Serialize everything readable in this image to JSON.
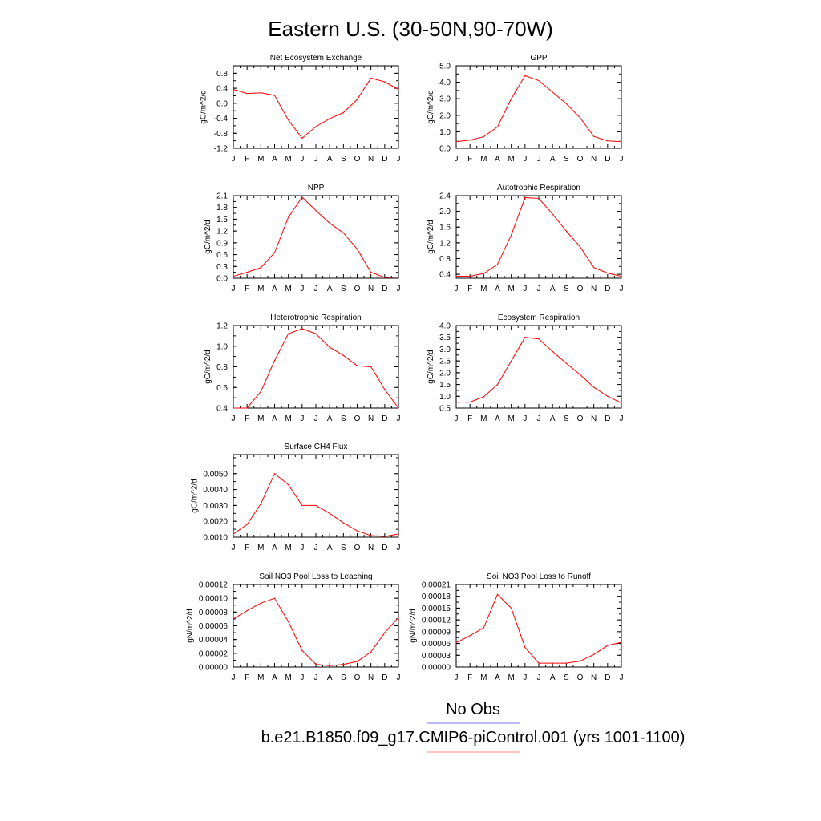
{
  "figure": {
    "title": "Eastern U.S. (30-50N,90-70W)",
    "legend": [
      {
        "label": "No Obs",
        "color": "#7777ee"
      },
      {
        "label": "b.e21.B1850.f09_g17.CMIP6-piControl.001 (yrs 1001-1100)",
        "color": "#ff8888"
      }
    ]
  },
  "chart_data": [
    {
      "type": "line",
      "title": "Net Ecosystem Exchange",
      "ylabel": "gC/m^2/d",
      "categories": [
        "J",
        "F",
        "M",
        "A",
        "M",
        "J",
        "J",
        "A",
        "S",
        "O",
        "N",
        "D",
        "J"
      ],
      "ylim": [
        -1.2,
        1.0
      ],
      "yticks": [
        -1.2,
        -0.8,
        -0.4,
        0.0,
        0.4,
        0.8
      ],
      "ytick_labels": [
        "-1.2",
        "-0.8",
        "-0.4",
        "0.0",
        "0.4",
        "0.8"
      ],
      "series": [
        {
          "color": "#ff0000",
          "values": [
            0.37,
            0.26,
            0.28,
            0.21,
            -0.45,
            -0.93,
            -0.62,
            -0.41,
            -0.25,
            0.1,
            0.67,
            0.57,
            0.37
          ]
        }
      ]
    },
    {
      "type": "line",
      "title": "GPP",
      "ylabel": "gC/m^2/d",
      "categories": [
        "J",
        "F",
        "M",
        "A",
        "M",
        "J",
        "J",
        "A",
        "S",
        "O",
        "N",
        "D",
        "J"
      ],
      "ylim": [
        0.0,
        5.0
      ],
      "yticks": [
        0.0,
        1.0,
        2.0,
        3.0,
        4.0,
        5.0
      ],
      "ytick_labels": [
        "0.0",
        "1.0",
        "2.0",
        "3.0",
        "4.0",
        "5.0"
      ],
      "series": [
        {
          "color": "#ff0000",
          "values": [
            0.4,
            0.5,
            0.7,
            1.3,
            3.0,
            4.4,
            4.1,
            3.4,
            2.7,
            1.85,
            0.72,
            0.45,
            0.4
          ]
        }
      ]
    },
    {
      "type": "line",
      "title": "NPP",
      "ylabel": "gC/m^2/d",
      "categories": [
        "J",
        "F",
        "M",
        "A",
        "M",
        "J",
        "J",
        "A",
        "S",
        "O",
        "N",
        "D",
        "J"
      ],
      "ylim": [
        0.0,
        2.1
      ],
      "yticks": [
        0.0,
        0.3,
        0.6,
        0.9,
        1.2,
        1.5,
        1.8,
        2.1
      ],
      "ytick_labels": [
        "0.0",
        "0.3",
        "0.6",
        "0.9",
        "1.2",
        "1.5",
        "1.8",
        "2.1"
      ],
      "series": [
        {
          "color": "#ff0000",
          "values": [
            0.05,
            0.15,
            0.27,
            0.65,
            1.55,
            2.06,
            1.72,
            1.4,
            1.15,
            0.74,
            0.15,
            0.02,
            0.03
          ]
        }
      ]
    },
    {
      "type": "line",
      "title": "Autotrophic Respiration",
      "ylabel": "gC/m^2/d",
      "categories": [
        "J",
        "F",
        "M",
        "A",
        "M",
        "J",
        "J",
        "A",
        "S",
        "O",
        "N",
        "D",
        "J"
      ],
      "ylim": [
        0.3,
        2.4
      ],
      "yticks": [
        0.4,
        0.8,
        1.2,
        1.6,
        2.0,
        2.4
      ],
      "ytick_labels": [
        "0.4",
        "0.8",
        "1.2",
        "1.6",
        "2.0",
        "2.4"
      ],
      "series": [
        {
          "color": "#ff0000",
          "values": [
            0.35,
            0.35,
            0.42,
            0.65,
            1.4,
            2.35,
            2.33,
            1.93,
            1.5,
            1.1,
            0.57,
            0.43,
            0.35
          ]
        }
      ]
    },
    {
      "type": "line",
      "title": "Heterotrophic Respiration",
      "ylabel": "gC/m^2/d",
      "categories": [
        "J",
        "F",
        "M",
        "A",
        "M",
        "J",
        "J",
        "A",
        "S",
        "O",
        "N",
        "D",
        "J"
      ],
      "ylim": [
        0.4,
        1.2
      ],
      "yticks": [
        0.4,
        0.6,
        0.8,
        1.0,
        1.2
      ],
      "ytick_labels": [
        "0.4",
        "0.6",
        "0.8",
        "1.0",
        "1.2"
      ],
      "series": [
        {
          "color": "#ff0000",
          "values": [
            0.4,
            0.4,
            0.56,
            0.86,
            1.12,
            1.17,
            1.12,
            0.99,
            0.91,
            0.81,
            0.8,
            0.58,
            0.4
          ]
        }
      ]
    },
    {
      "type": "line",
      "title": "Ecosystem Respiration",
      "ylabel": "gC/m^2/d",
      "categories": [
        "J",
        "F",
        "M",
        "A",
        "M",
        "J",
        "J",
        "A",
        "S",
        "O",
        "N",
        "D",
        "J"
      ],
      "ylim": [
        0.5,
        4.0
      ],
      "yticks": [
        0.5,
        1.0,
        1.5,
        2.0,
        2.5,
        3.0,
        3.5,
        4.0
      ],
      "ytick_labels": [
        "0.5",
        "1.0",
        "1.5",
        "2.0",
        "2.5",
        "3.0",
        "3.5",
        "4.0"
      ],
      "series": [
        {
          "color": "#ff0000",
          "values": [
            0.75,
            0.75,
            0.98,
            1.5,
            2.5,
            3.5,
            3.43,
            2.9,
            2.4,
            1.92,
            1.38,
            1.0,
            0.72
          ]
        }
      ]
    },
    {
      "type": "line",
      "title": "Surface CH4 Flux",
      "ylabel": "gC/m^2/d",
      "categories": [
        "J",
        "F",
        "M",
        "A",
        "M",
        "J",
        "J",
        "A",
        "S",
        "O",
        "N",
        "D",
        "J"
      ],
      "ylim": [
        0.001,
        0.0062
      ],
      "yticks": [
        0.001,
        0.002,
        0.003,
        0.004,
        0.005
      ],
      "ytick_labels": [
        "0.0010",
        "0.0020",
        "0.0030",
        "0.0040",
        "0.0050"
      ],
      "series": [
        {
          "color": "#ff0000",
          "values": [
            0.0012,
            0.0018,
            0.0031,
            0.005,
            0.0043,
            0.003,
            0.003,
            0.0025,
            0.0019,
            0.0014,
            0.0011,
            0.00105,
            0.0012
          ]
        }
      ]
    },
    {
      "type": "line",
      "title": "Soil NO3 Pool Loss to Leaching",
      "ylabel": "gN/m^2/d",
      "categories": [
        "J",
        "F",
        "M",
        "A",
        "M",
        "J",
        "J",
        "A",
        "S",
        "O",
        "N",
        "D",
        "J"
      ],
      "ylim": [
        0.0,
        0.00012
      ],
      "yticks": [
        0.0,
        2e-05,
        4e-05,
        6e-05,
        8e-05,
        0.0001,
        0.00012
      ],
      "ytick_labels": [
        "0.00000",
        "0.00002",
        "0.00004",
        "0.00006",
        "0.00008",
        "0.00010",
        "0.00012"
      ],
      "series": [
        {
          "color": "#ff0000",
          "values": [
            7e-05,
            8.2e-05,
            9.3e-05,
            0.0001,
            6.6e-05,
            2.4e-05,
            4e-06,
            2e-06,
            4e-06,
            8e-06,
            2.2e-05,
            5e-05,
            7.2e-05
          ]
        }
      ]
    },
    {
      "type": "line",
      "title": "Soil NO3 Pool Loss to Runoff",
      "ylabel": "gN/m^2/d",
      "categories": [
        "J",
        "F",
        "M",
        "A",
        "M",
        "J",
        "J",
        "A",
        "S",
        "O",
        "N",
        "D",
        "J"
      ],
      "ylim": [
        0.0,
        0.00021
      ],
      "yticks": [
        0.0,
        3e-05,
        6e-05,
        9e-05,
        0.00012,
        0.00015,
        0.00018,
        0.00021
      ],
      "ytick_labels": [
        "0.00000",
        "0.00003",
        "0.00006",
        "0.00009",
        "0.00012",
        "0.00015",
        "0.00018",
        "0.00021"
      ],
      "series": [
        {
          "color": "#ff0000",
          "values": [
            6.2e-05,
            8e-05,
            0.0001,
            0.000185,
            0.00015,
            5e-05,
            1e-05,
            1e-05,
            1e-05,
            1.5e-05,
            3.2e-05,
            5.5e-05,
            6.3e-05
          ]
        }
      ]
    }
  ]
}
